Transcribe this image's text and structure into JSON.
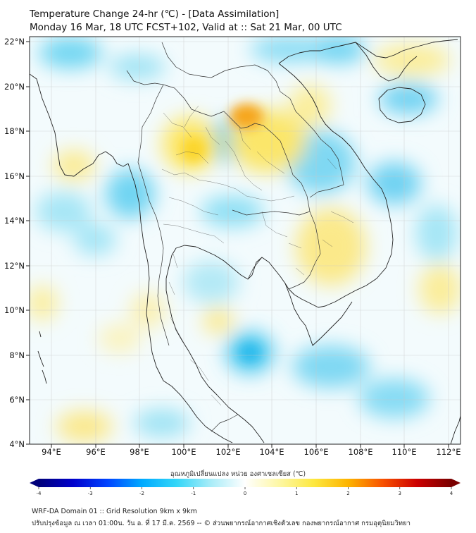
{
  "title": {
    "line1": "Temperature Change 24-hr (℃) - [Data Assimilation]",
    "line2": "Monday 16 Mar, 18 UTC FCST+102, Valid at :: Sat 21 Mar, 00 UTC"
  },
  "map": {
    "variable": "24-hr temperature change",
    "units": "°C",
    "lon_range": [
      93,
      112.5
    ],
    "lat_range": [
      4,
      22.2
    ],
    "lon_ticks": [
      "94°E",
      "96°E",
      "98°E",
      "100°E",
      "102°E",
      "104°E",
      "106°E",
      "108°E",
      "110°E",
      "112°E"
    ],
    "lat_ticks": [
      "22°N",
      "20°N",
      "18°N",
      "16°N",
      "14°N",
      "12°N",
      "10°N",
      "8°N",
      "6°N",
      "4°N"
    ],
    "highlights": [
      {
        "name": "warm core north-east Thailand / Laos",
        "lon": 103.0,
        "lat": 18.2,
        "value": 1.8
      },
      {
        "name": "warm area northern Thailand",
        "lon": 99.9,
        "lat": 17.2,
        "value": 1.0
      },
      {
        "name": "warm area Cambodia",
        "lon": 106.5,
        "lat": 12.8,
        "value": 0.9
      },
      {
        "name": "cool area Myanmar coast",
        "lon": 95.5,
        "lat": 14.8,
        "value": -1.0
      },
      {
        "name": "cool area Gulf of Thailand",
        "lon": 102.7,
        "lat": 8.2,
        "value": -1.1
      }
    ]
  },
  "colorbar": {
    "title": "อุณหภูมิเปลี่ยนแปลง หน่วย องศาเซลเซียส (℃)",
    "min": -4,
    "max": 4,
    "ticks": [
      "-4",
      "-3",
      "-2",
      "-1",
      "0",
      "1",
      "2",
      "3",
      "4"
    ],
    "colors": [
      "#00007a",
      "#0000cc",
      "#0044ff",
      "#00aaff",
      "#33d6f8",
      "#a8ecf8",
      "#ffffff",
      "#fdf7a4",
      "#fde840",
      "#fdb400",
      "#f85200",
      "#cc0000",
      "#7a0000"
    ]
  },
  "footer": {
    "line1": "WRF-DA Domain 01 :: Grid Resolution 9km x 9km",
    "line2": "ปรับปรุงข้อมูล ณ เวลา 01:00น. วัน อ. ที่ 17 มี.ค. 2569 -- © ส่วนพยากรณ์อากาศเชิงตัวเลข กองพยากรณ์อากาศ กรมอุตุนิยมวิทยา"
  }
}
